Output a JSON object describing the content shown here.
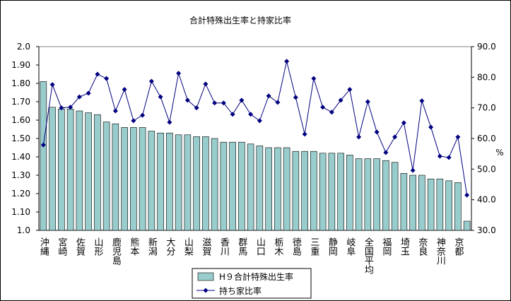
{
  "chart_data": {
    "type": "bar_line",
    "title": "合計特殊出生率と持家比率",
    "y2_label": "%",
    "categories": [
      "沖縄",
      null,
      "宮崎",
      null,
      "佐賀",
      null,
      "山形",
      null,
      "鹿児島",
      null,
      "熊本",
      null,
      "新潟",
      null,
      "大分",
      null,
      "山梨",
      null,
      "滋賀",
      null,
      "香川",
      null,
      "群馬",
      null,
      "山口",
      null,
      "栃木",
      null,
      "徳島",
      null,
      "三重",
      null,
      "静岡",
      null,
      "岐阜",
      null,
      "全国平均",
      null,
      "福岡",
      null,
      "埼玉",
      null,
      "奈良",
      null,
      "神奈川",
      null,
      "京都",
      null
    ],
    "series": [
      {
        "name": "H９合計特殊出生率",
        "color": "#99cccc",
        "axis": "y",
        "values": [
          1.81,
          1.67,
          1.66,
          1.66,
          1.65,
          1.64,
          1.63,
          1.59,
          1.58,
          1.56,
          1.56,
          1.56,
          1.54,
          1.53,
          1.53,
          1.52,
          1.52,
          1.51,
          1.51,
          1.5,
          1.48,
          1.48,
          1.48,
          1.47,
          1.46,
          1.45,
          1.45,
          1.45,
          1.43,
          1.43,
          1.43,
          1.42,
          1.42,
          1.42,
          1.41,
          1.39,
          1.39,
          1.39,
          1.38,
          1.37,
          1.31,
          1.3,
          1.3,
          1.28,
          1.28,
          1.27,
          1.26,
          1.05
        ]
      },
      {
        "name": "持ち家比率",
        "color": "#000080",
        "axis": "y2",
        "values": [
          57.9,
          77.6,
          70.0,
          70.2,
          73.6,
          74.8,
          81.0,
          79.6,
          69.0,
          76.0,
          65.8,
          67.6,
          78.7,
          73.6,
          65.3,
          81.3,
          72.5,
          70.0,
          77.8,
          71.6,
          71.6,
          67.9,
          72.5,
          67.9,
          65.8,
          73.9,
          71.8,
          85.2,
          73.4,
          61.4,
          79.6,
          70.2,
          68.6,
          72.5,
          76.0,
          60.5,
          72.0,
          62.1,
          55.4,
          60.5,
          65.1,
          49.6,
          72.3,
          63.7,
          54.2,
          53.8,
          60.5,
          41.5
        ]
      }
    ],
    "ylim": [
      1.0,
      2.0
    ],
    "yticks": [
      {
        "value": 1.0,
        "label": "1.0"
      },
      {
        "value": 1.1,
        "label": "1.10"
      },
      {
        "value": 1.2,
        "label": "1.20"
      },
      {
        "value": 1.3,
        "label": "1.30"
      },
      {
        "value": 1.4,
        "label": "1.40"
      },
      {
        "value": 1.5,
        "label": "1.50"
      },
      {
        "value": 1.6,
        "label": "1.60"
      },
      {
        "value": 1.7,
        "label": "1.70"
      },
      {
        "value": 1.8,
        "label": "1.80"
      },
      {
        "value": 1.9,
        "label": "1.90"
      },
      {
        "value": 2.0,
        "label": "2.0"
      }
    ],
    "y2lim": [
      30,
      90
    ],
    "y2ticks": [
      {
        "value": 30,
        "label": "30.0"
      },
      {
        "value": 40,
        "label": "40.0"
      },
      {
        "value": 50,
        "label": "50.0"
      },
      {
        "value": 60,
        "label": "60.0"
      },
      {
        "value": 70,
        "label": "70.0"
      },
      {
        "value": 80,
        "label": "80.0"
      },
      {
        "value": 90,
        "label": "90.0"
      }
    ],
    "grid": false,
    "legend": "bottom"
  }
}
